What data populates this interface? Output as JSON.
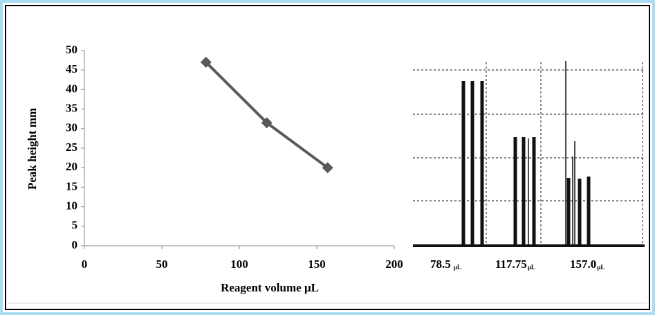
{
  "chart_data": {
    "type": "line",
    "x_label": "Reagent volume  μL",
    "y_label": "Peak height mm",
    "x": [
      78.5,
      117.75,
      157.0
    ],
    "values": [
      47,
      31.5,
      20
    ],
    "color": "#595959",
    "xlim": [
      0,
      200
    ],
    "xticks": [
      0,
      50,
      100,
      150,
      200
    ],
    "ylim": [
      0,
      50
    ],
    "yticks": [
      0,
      5,
      10,
      15,
      20,
      25,
      30,
      35,
      40,
      45,
      50
    ]
  },
  "trace": {
    "labels": [
      "78.5",
      "117.75",
      "157.0"
    ],
    "unit": "μL"
  }
}
